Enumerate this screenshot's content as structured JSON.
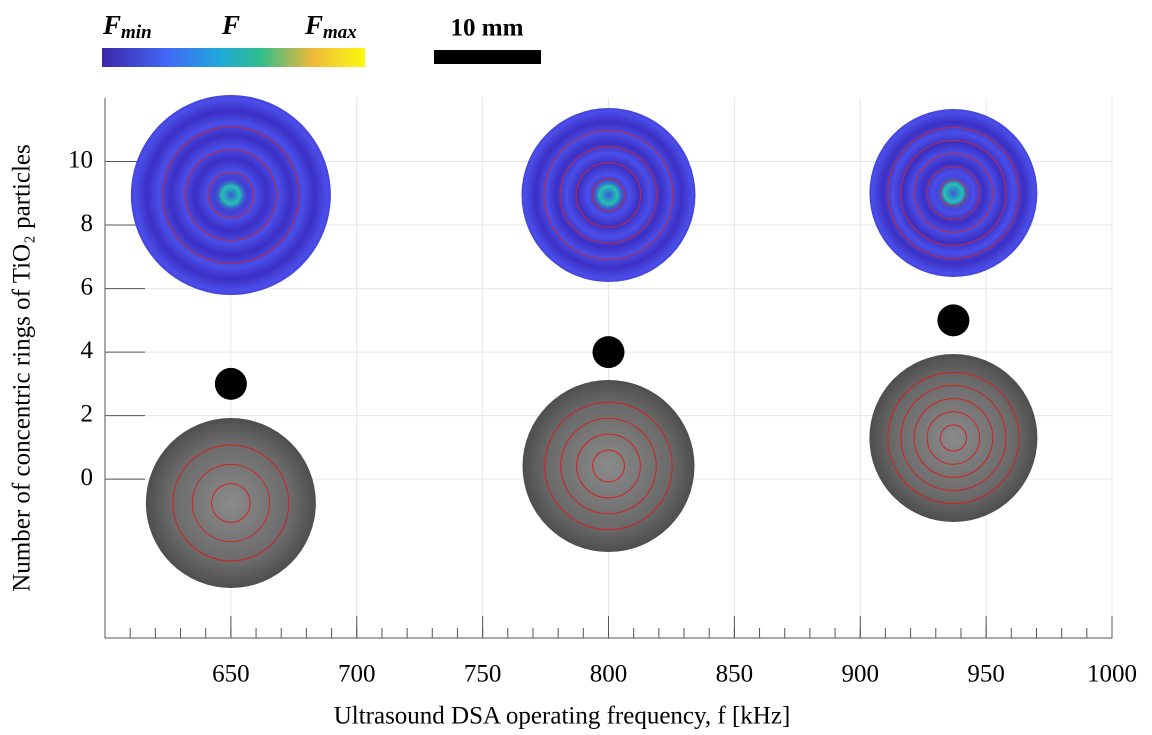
{
  "chart_data": {
    "type": "scatter",
    "xlabel": "Ultrasound DSA operating frequency, f [kHz]",
    "ylabel": "Number of concentric rings of TiO₂ particles",
    "x": [
      650,
      800,
      937
    ],
    "values": [
      3,
      4,
      5
    ],
    "color": "#000000",
    "xlim": [
      600,
      1000
    ],
    "xticks": [
      650,
      700,
      750,
      800,
      850,
      900,
      950,
      1000
    ],
    "ylim": [
      -5,
      12
    ],
    "yticks": [
      0,
      2,
      4,
      6,
      8,
      10
    ],
    "grid": true,
    "colorbar": {
      "labels": [
        {
          "symbol": "F",
          "sub": "min"
        },
        {
          "symbol": "F"
        },
        {
          "symbol": "F",
          "sub": "max"
        }
      ]
    },
    "scale_bar": "10 mm"
  }
}
